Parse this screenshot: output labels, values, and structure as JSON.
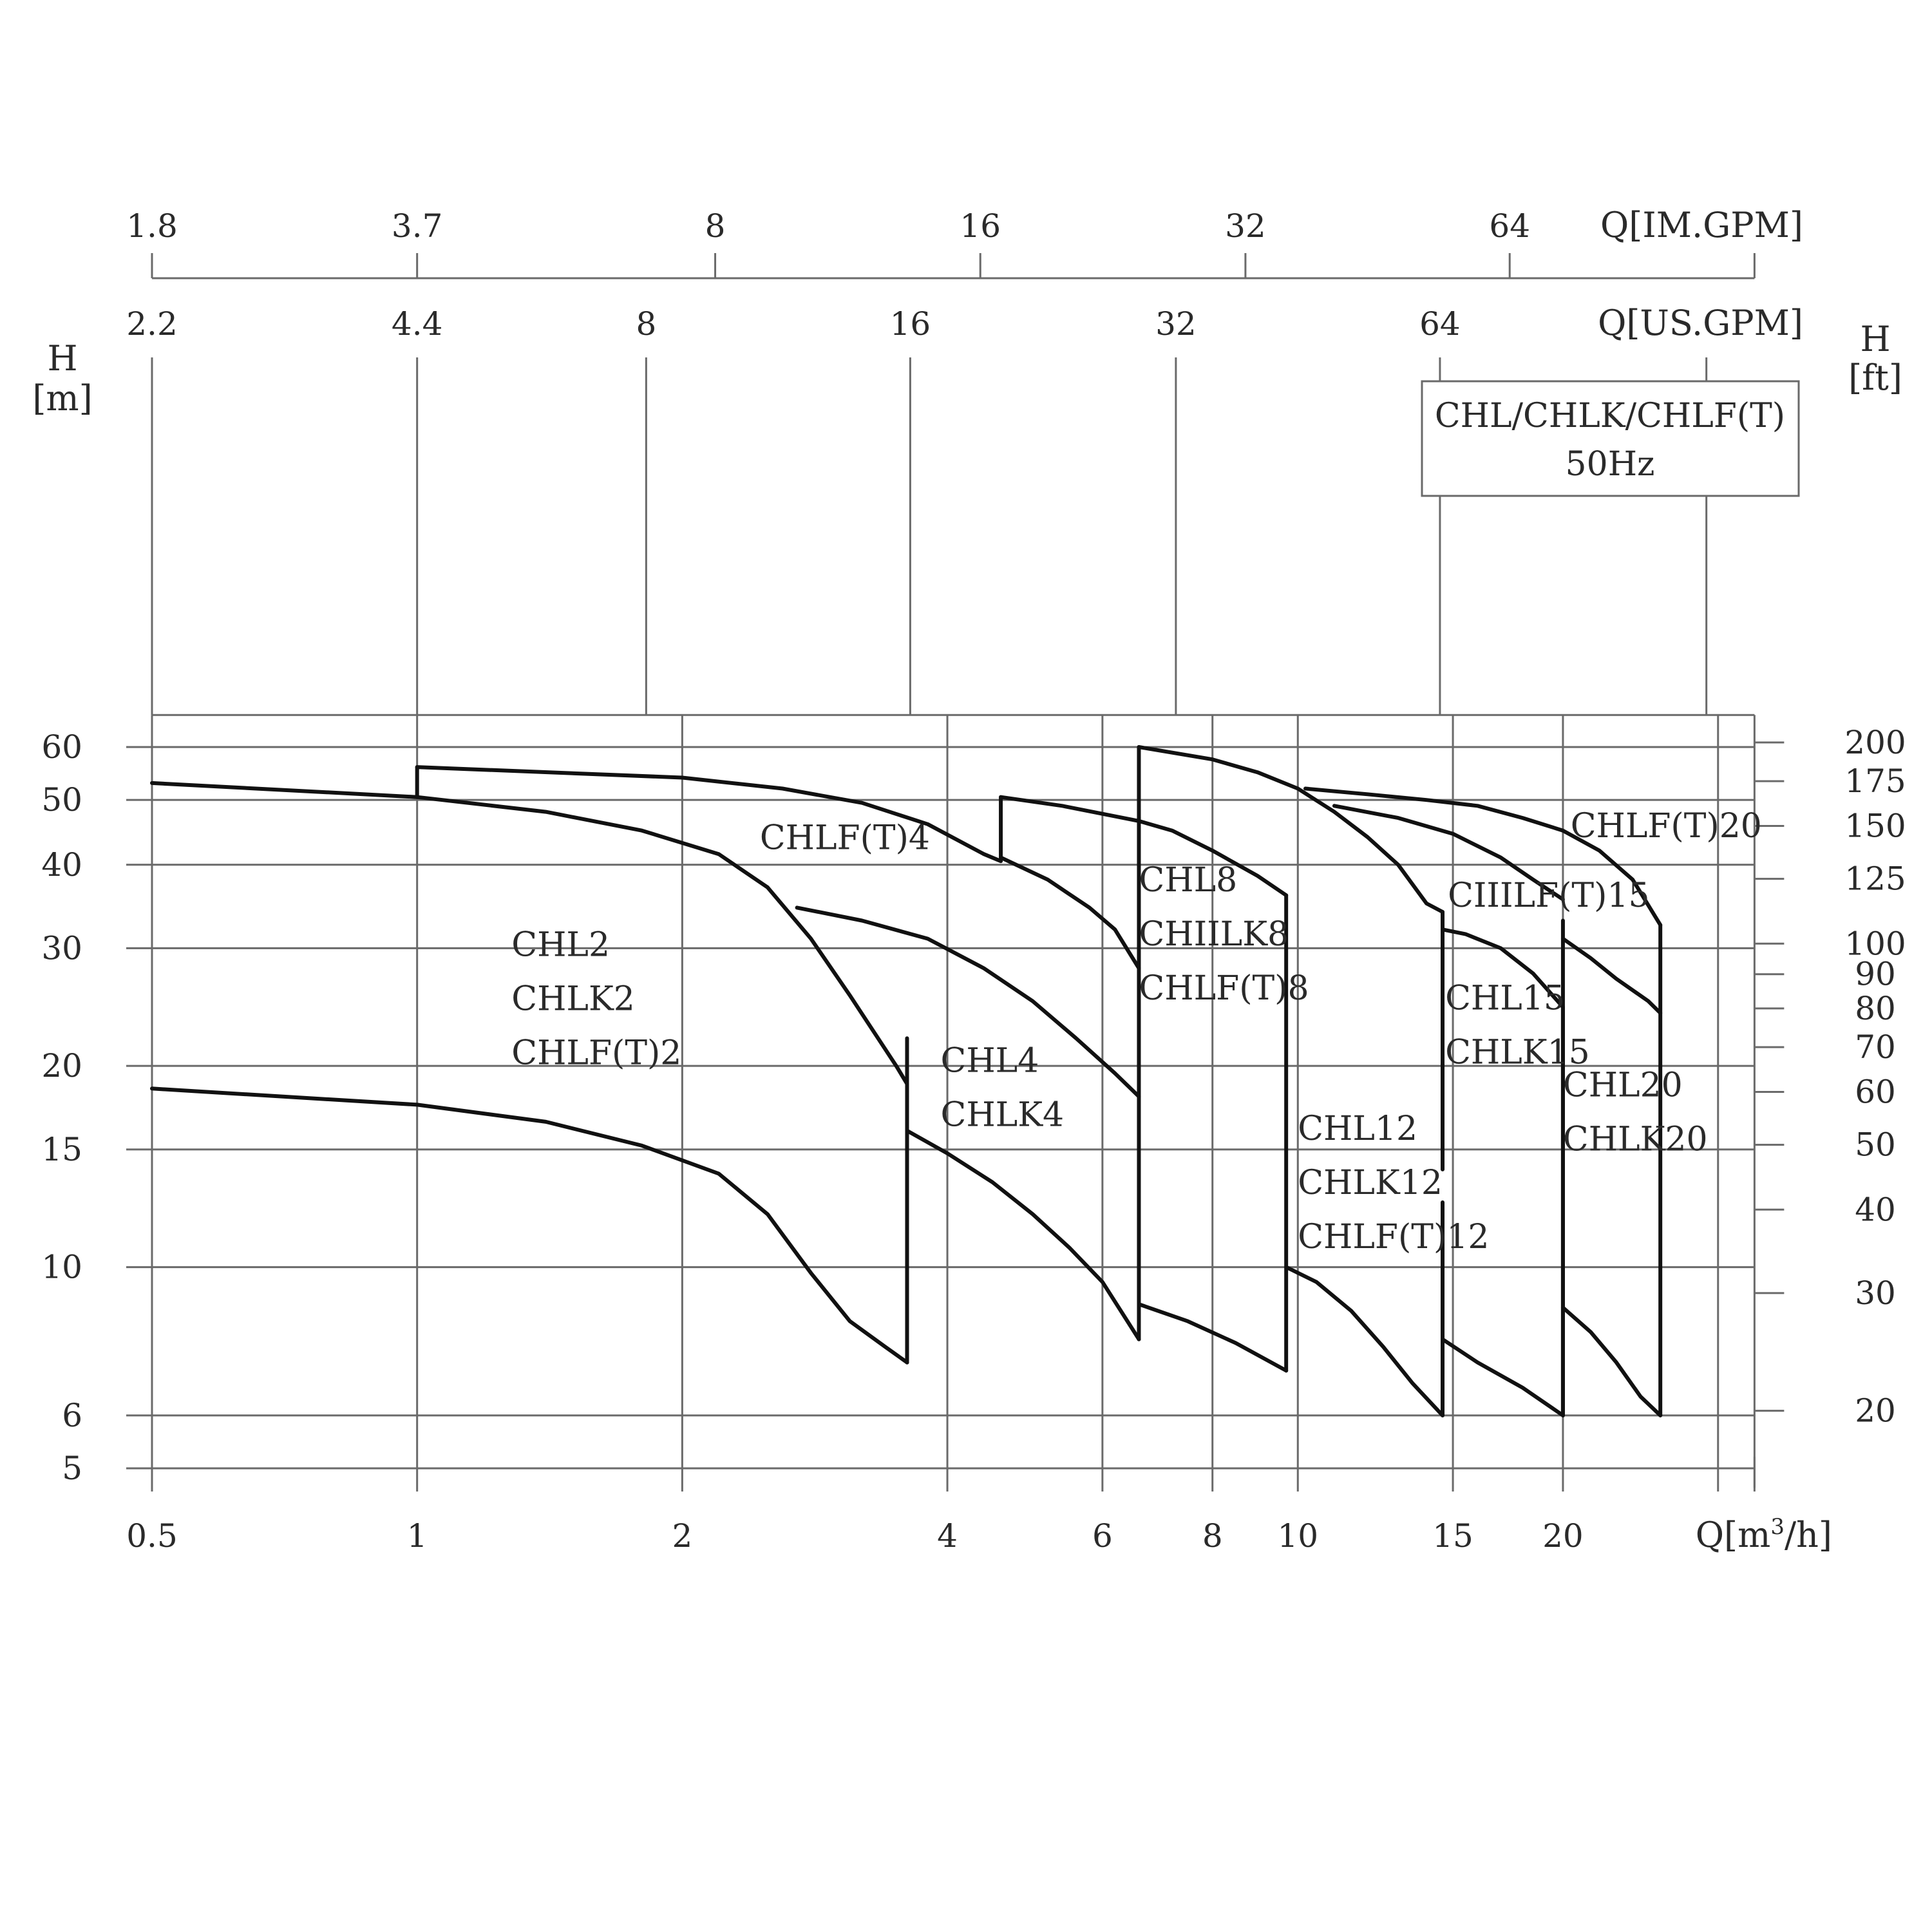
{
  "chart_data": {
    "type": "line",
    "title": "",
    "legend": {
      "lines": [
        "CHL/CHLK/CHLF(T)",
        "50Hz"
      ],
      "placement": "top-right"
    },
    "x_axis": {
      "label": "Q[m³/h]",
      "label_parts": {
        "base": "Q[m",
        "sup": "3",
        "tail": "/h]"
      },
      "scale": "log",
      "range": [
        0.5,
        33
      ],
      "ticks": [
        0.5,
        1,
        2,
        4,
        6,
        8,
        10,
        15,
        20
      ],
      "tick_labels": [
        "0.5",
        "1",
        "2",
        "4",
        "6",
        "8",
        "10",
        "15",
        "20"
      ],
      "extra_gridlines": [
        30
      ],
      "extra_minor_ticks": [
        33
      ]
    },
    "x2_axis_us": {
      "label": "Q[US.GPM]",
      "ticks": [
        2.2,
        4.4,
        8,
        16,
        32,
        64
      ],
      "tick_positions_m3h": [
        0.5,
        1,
        1.82,
        3.63,
        7.27,
        14.5
      ],
      "extra_tick_positions_m3h": [
        29.1
      ]
    },
    "x3_axis_im": {
      "label": "Q[IM.GPM]",
      "ticks": [
        1.8,
        3.7,
        8,
        16,
        32,
        64
      ],
      "tick_positions_m3h": [
        0.5,
        1,
        2.18,
        4.36,
        8.72,
        17.4
      ],
      "extra_tick_positions_m3h": [
        33
      ],
      "range_m3h": [
        0.5,
        33
      ]
    },
    "y_axis": {
      "label_lines": [
        "H",
        "[m]"
      ],
      "scale": "log",
      "range": [
        5,
        67
      ],
      "ticks": [
        5,
        6,
        10,
        15,
        20,
        30,
        40,
        50,
        60
      ],
      "tick_labels": [
        "5",
        "6",
        "10",
        "15",
        "20",
        "30",
        "40",
        "50",
        "60"
      ]
    },
    "y2_axis": {
      "label_lines": [
        "H",
        "[ft]"
      ],
      "ticks": [
        20,
        30,
        40,
        50,
        60,
        70,
        80,
        90,
        100,
        125,
        150,
        175,
        200
      ],
      "tick_labels": [
        "20",
        "30",
        "40",
        "50",
        "60",
        "70",
        "80",
        "90",
        "100",
        "125",
        "150",
        "175",
        "200"
      ],
      "meters_per_foot": 0.3048
    },
    "grid": true,
    "series": [
      {
        "name": "CHL2 / CHLK2 / CHLF(T)2",
        "points": [
          [
            0.5,
            53
          ],
          [
            1,
            50.5
          ],
          [
            1.4,
            48
          ],
          [
            1.8,
            45
          ],
          [
            2.2,
            41.5
          ],
          [
            2.5,
            37
          ],
          [
            2.8,
            31
          ],
          [
            3.1,
            25.5
          ],
          [
            3.3,
            22.5
          ],
          [
            3.5,
            20
          ],
          [
            3.6,
            18.8
          ],
          [
            3.6,
            7.2
          ]
        ]
      },
      {
        "name": "CHL2 / CHLK2 / CHLF(T)2 lower",
        "points": [
          [
            0.5,
            18.5
          ],
          [
            1,
            17.5
          ],
          [
            1.4,
            16.5
          ],
          [
            1.8,
            15.2
          ],
          [
            2.2,
            13.8
          ],
          [
            2.5,
            12
          ],
          [
            2.8,
            9.8
          ],
          [
            3.1,
            8.3
          ],
          [
            3.4,
            7.6
          ],
          [
            3.6,
            7.2
          ]
        ]
      },
      {
        "name": "CHLF(T)4",
        "points": [
          [
            1,
            56
          ],
          [
            2,
            54
          ],
          [
            2.6,
            52
          ],
          [
            3.2,
            49.5
          ],
          [
            3.8,
            46
          ],
          [
            4.4,
            41.5
          ],
          [
            4.6,
            40.5
          ]
        ]
      },
      {
        "name": "CHL4 / CHLK4",
        "points": [
          [
            2.7,
            34.5
          ],
          [
            3.2,
            33
          ],
          [
            3.8,
            31
          ],
          [
            4.4,
            28
          ],
          [
            5,
            25
          ],
          [
            5.6,
            22
          ],
          [
            6.2,
            19.5
          ],
          [
            6.6,
            18
          ]
        ]
      },
      {
        "name": "CHL4 / CHLK4 lower",
        "points": [
          [
            3.6,
            16
          ],
          [
            4,
            14.8
          ],
          [
            4.5,
            13.4
          ],
          [
            5,
            12
          ],
          [
            5.5,
            10.7
          ],
          [
            6,
            9.5
          ],
          [
            6.6,
            7.8
          ]
        ]
      },
      {
        "name": "CHL8 / CHLK8 / CHLF(T)8",
        "points": [
          [
            4.6,
            50.5
          ],
          [
            5.4,
            49
          ],
          [
            6.6,
            46.5
          ],
          [
            7.2,
            45
          ],
          [
            8,
            42
          ],
          [
            9,
            38.5
          ],
          [
            9.7,
            36
          ]
        ]
      },
      {
        "name": "CHL8 / CHLK8 / CHLF(T)8 connector",
        "points": [
          [
            4.6,
            41
          ],
          [
            5.2,
            38
          ],
          [
            5.8,
            34.5
          ],
          [
            6.2,
            32
          ],
          [
            6.6,
            28
          ]
        ]
      },
      {
        "name": "CHL12 / CHLK12 / CHLF(T)12",
        "points": [
          [
            6.6,
            60
          ],
          [
            8,
            57.5
          ],
          [
            9,
            55
          ],
          [
            10,
            52
          ],
          [
            11,
            48
          ],
          [
            12,
            44
          ],
          [
            13,
            40
          ],
          [
            14,
            35
          ],
          [
            14.6,
            34
          ]
        ]
      },
      {
        "name": "CHL12 / CHLK12 / CHLF(T)12 lower",
        "points": [
          [
            6.6,
            8.8
          ],
          [
            7.5,
            8.3
          ],
          [
            8.5,
            7.7
          ],
          [
            9.7,
            7
          ]
        ]
      },
      {
        "name": "CHL12 lower",
        "points": [
          [
            9.7,
            10
          ],
          [
            10.5,
            9.5
          ],
          [
            11.5,
            8.6
          ],
          [
            12.5,
            7.6
          ],
          [
            13.5,
            6.7
          ],
          [
            14.6,
            6
          ]
        ]
      },
      {
        "name": "CHLF(T)15",
        "points": [
          [
            10.2,
            52
          ],
          [
            12,
            51
          ],
          [
            14,
            50
          ],
          [
            16,
            49
          ],
          [
            18,
            47
          ],
          [
            20,
            45
          ],
          [
            22,
            42
          ],
          [
            24,
            38
          ],
          [
            25.8,
            32.5
          ]
        ]
      },
      {
        "name": "CHL15 / CHLK15 / CHLF(T)15",
        "points": [
          [
            11,
            49
          ],
          [
            13,
            47
          ],
          [
            15,
            44.5
          ],
          [
            17,
            41
          ],
          [
            18.5,
            38
          ],
          [
            20,
            35.5
          ]
        ]
      },
      {
        "name": "CHL15 / CHLK15",
        "points": [
          [
            14.6,
            32
          ],
          [
            15.5,
            31.5
          ],
          [
            17,
            30
          ],
          [
            18.5,
            27.5
          ],
          [
            20,
            24.5
          ]
        ]
      },
      {
        "name": "CHL15 lower",
        "points": [
          [
            14.6,
            7.8
          ],
          [
            16,
            7.2
          ],
          [
            18,
            6.6
          ],
          [
            20,
            6
          ]
        ]
      },
      {
        "name": "CHL20 / CHLK20",
        "points": [
          [
            20,
            31
          ],
          [
            21.5,
            29
          ],
          [
            23,
            27
          ],
          [
            25,
            25
          ],
          [
            25.8,
            24
          ]
        ]
      },
      {
        "name": "CHL20 lower",
        "points": [
          [
            20,
            8.7
          ],
          [
            21.5,
            8
          ],
          [
            23,
            7.2
          ],
          [
            24.5,
            6.4
          ],
          [
            25.8,
            6
          ]
        ]
      }
    ],
    "verticals": [
      {
        "x": 1,
        "y": [
          50.5,
          56
        ]
      },
      {
        "x": 3.6,
        "y": [
          7.2,
          22
        ]
      },
      {
        "x": 4.6,
        "y": [
          41,
          50.5
        ]
      },
      {
        "x": 6.6,
        "y": [
          7.8,
          47
        ]
      },
      {
        "x": 6.6,
        "y": [
          46.5,
          60
        ]
      },
      {
        "x": 9.7,
        "y": [
          7,
          36
        ]
      },
      {
        "x": 14.6,
        "y": [
          14,
          34
        ]
      },
      {
        "x": 14.6,
        "y": [
          6,
          12.5
        ]
      },
      {
        "x": 20,
        "y": [
          6,
          24.5
        ]
      },
      {
        "x": 20,
        "y": [
          6,
          33
        ]
      },
      {
        "x": 25.8,
        "y": [
          6,
          32.5
        ]
      }
    ],
    "region_labels": [
      {
        "lines": [
          "CHL2",
          "CHLK2",
          "CHLF(T)2"
        ],
        "x": 1.28,
        "y": 29.2
      },
      {
        "lines": [
          "CHLF(T)4"
        ],
        "x": 2.45,
        "y": 42.2
      },
      {
        "lines": [
          "CHL4",
          "CHLK4"
        ],
        "x": 3.93,
        "y": 19.6
      },
      {
        "lines": [
          "CHL8",
          "CHIILK8",
          "CHLF(T)8"
        ],
        "x": 6.6,
        "y": 36.5
      },
      {
        "lines": [
          "CIIILF(T)15"
        ],
        "x": 14.8,
        "y": 34.6
      },
      {
        "lines": [
          "CHLF(T)20"
        ],
        "x": 20.4,
        "y": 44
      },
      {
        "lines": [
          "CHL12",
          "CHLK12",
          "CHLF(T)12"
        ],
        "x": 10,
        "y": 15.5
      },
      {
        "lines": [
          "CHL15",
          "CHLK15"
        ],
        "x": 14.7,
        "y": 24.3
      },
      {
        "lines": [
          "CHL20",
          "CHLK20"
        ],
        "x": 20,
        "y": 18
      }
    ]
  }
}
